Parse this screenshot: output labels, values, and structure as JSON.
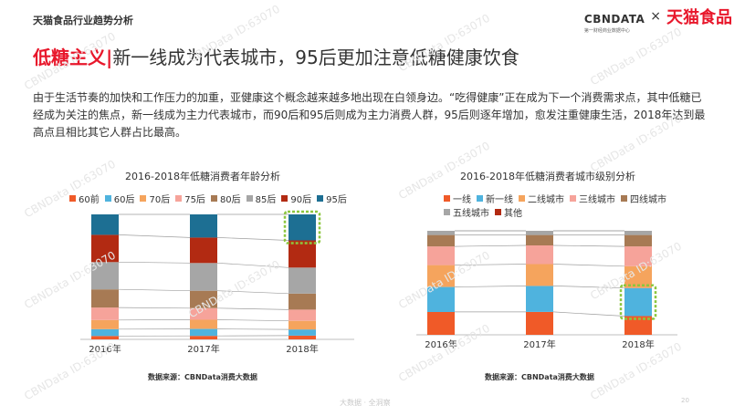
{
  "header": {
    "title": "天猫食品行业趋势分析"
  },
  "brand": {
    "cbn": "CBNDATA",
    "cbn_sub": "第一财经商业数据中心",
    "cross": "×",
    "tmall": "天猫食品"
  },
  "headline": {
    "key": "低糖主义",
    "divider": "|",
    "rest": "新一线成为代表城市，95后更加注意低糖健康饮食"
  },
  "paragraph": "由于生活节奏的加快和工作压力的加重，亚健康这个概念越来越多地出现在白领身边。“吃得健康”正在成为下一个消费需求点，其中低糖已经成为关注的焦点，新一线成为主力代表城市，而90后和95后则成为主力消费人群，95后则逐年增加，愈发注重健康生活，2018年达到最高点且相比其它人群占比最高。",
  "watermark": "CBNData ID:63070",
  "footer": {
    "watermark": "大数据 · 全洞察",
    "page": "20"
  },
  "colors": {
    "accent": "#e8172b",
    "highlight": "#8cc63f"
  },
  "chart_data": [
    {
      "type": "bar",
      "stacked": true,
      "normalized": true,
      "title": "2016-2018年低糖消费者年龄分析",
      "source": "数据来源：CBNData消费大数据",
      "categories": [
        "2016年",
        "2017年",
        "2018年"
      ],
      "series": [
        {
          "name": "60前",
          "color": "#f05a28",
          "values": [
            3,
            3,
            3
          ]
        },
        {
          "name": "60后",
          "color": "#4fb3de",
          "values": [
            6,
            6,
            5
          ]
        },
        {
          "name": "70后",
          "color": "#f5a45d",
          "values": [
            8,
            8,
            7
          ]
        },
        {
          "name": "75后",
          "color": "#f6a39a",
          "values": [
            11,
            10,
            9
          ]
        },
        {
          "name": "80后",
          "color": "#a77a54",
          "values": [
            16,
            15,
            13
          ]
        },
        {
          "name": "85后",
          "color": "#a6a6a6",
          "values": [
            24,
            24,
            21
          ]
        },
        {
          "name": "90后",
          "color": "#b22a12",
          "values": [
            24,
            22,
            22
          ]
        },
        {
          "name": "95后",
          "color": "#1d6f93",
          "values": [
            18,
            20,
            21
          ]
        }
      ],
      "highlight": {
        "category": "2018年",
        "series": "95后"
      },
      "grid": false,
      "legend": "top"
    },
    {
      "type": "bar",
      "stacked": true,
      "normalized": true,
      "title": "2016-2018年低糖消费者城市级别分析",
      "source": "数据来源：CBNData消费大数据",
      "categories": [
        "2016年",
        "2017年",
        "2018年"
      ],
      "series": [
        {
          "name": "一线",
          "color": "#f05a28",
          "values": [
            22,
            22,
            18
          ]
        },
        {
          "name": "新一线",
          "color": "#4fb3de",
          "values": [
            24,
            25,
            27
          ]
        },
        {
          "name": "二线城市",
          "color": "#f5a45d",
          "values": [
            21,
            21,
            21
          ]
        },
        {
          "name": "三线城市",
          "color": "#f6a39a",
          "values": [
            18,
            18,
            19
          ]
        },
        {
          "name": "四线城市",
          "color": "#a77a54",
          "values": [
            11,
            10,
            11
          ]
        },
        {
          "name": "五线城市",
          "color": "#a6a6a6",
          "values": [
            4,
            4,
            4
          ]
        },
        {
          "name": "其他",
          "color": "#b22a12",
          "values": [
            0,
            0,
            0
          ]
        }
      ],
      "highlight": {
        "category": "2018年",
        "series": "新一线"
      },
      "grid": false,
      "legend": "top"
    }
  ]
}
